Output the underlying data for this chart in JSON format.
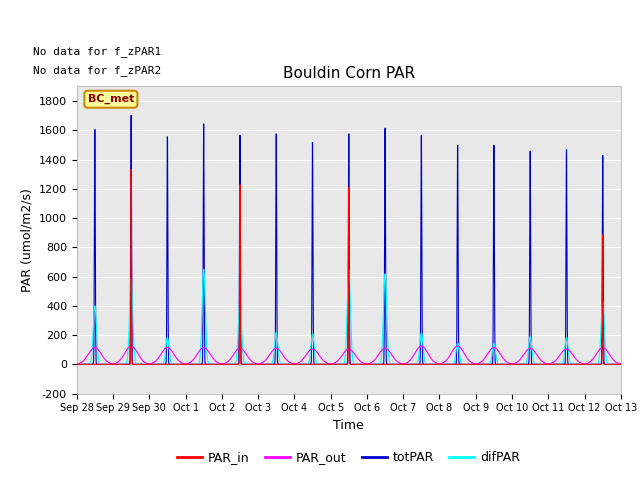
{
  "title": "Bouldin Corn PAR",
  "xlabel": "Time",
  "ylabel": "PAR (umol/m2/s)",
  "ylim": [
    -200,
    1900
  ],
  "yticks": [
    -200,
    0,
    200,
    400,
    600,
    800,
    1000,
    1200,
    1400,
    1600,
    1800
  ],
  "xtick_labels": [
    "Sep 28",
    "Sep 29",
    "Sep 30",
    "Oct 1",
    "Oct 2",
    "Oct 3",
    "Oct 4",
    "Oct 5",
    "Oct 6",
    "Oct 7",
    "Oct 8",
    "Oct 9",
    "Oct 10",
    "Oct 11",
    "Oct 12",
    "Oct 13"
  ],
  "colors": {
    "PAR_in": "#ff0000",
    "PAR_out": "#ff00ff",
    "totPAR": "#0000cc",
    "difPAR": "#00ffff"
  },
  "background_color": "#e8e8e8",
  "no_data_text1": "No data for f_zPAR1",
  "no_data_text2": "No data for f_zPAR2",
  "bc_met_label": "BC_met",
  "bc_met_color": "#cc8800",
  "bc_met_bg": "#ffff99",
  "days": 15,
  "points_per_day": 200,
  "daily_peaks": {
    "totPAR": [
      1640,
      1740,
      1590,
      1680,
      1600,
      1610,
      1550,
      1610,
      1650,
      1600,
      1530,
      1530,
      1490,
      1500,
      1460
    ],
    "PAR_in": [
      0,
      1400,
      0,
      0,
      1290,
      0,
      0,
      1270,
      0,
      0,
      0,
      0,
      0,
      0,
      930
    ],
    "PAR_out": [
      115,
      125,
      115,
      115,
      110,
      110,
      105,
      105,
      110,
      125,
      125,
      115,
      110,
      105,
      115
    ],
    "difPAR": [
      400,
      590,
      185,
      650,
      430,
      220,
      210,
      650,
      620,
      215,
      145,
      140,
      190,
      185,
      430
    ]
  }
}
